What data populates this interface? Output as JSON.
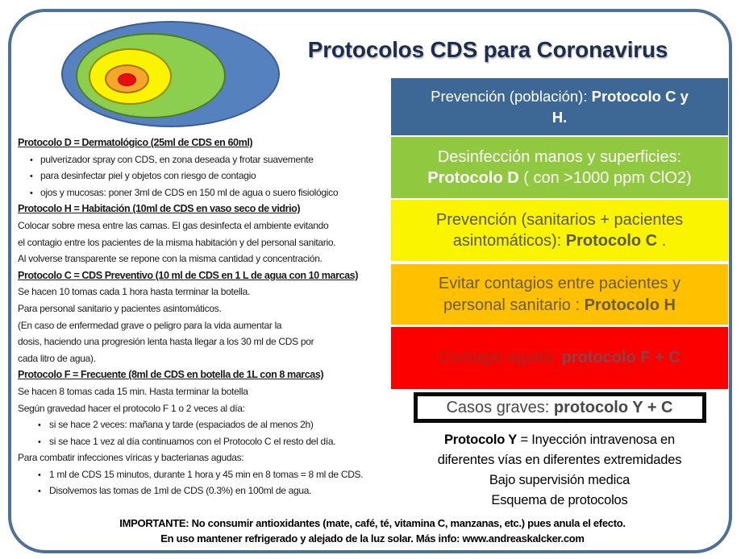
{
  "title": "Protocolos CDS para Coronavirus",
  "diagram": {
    "description": "concentric-severity-ellipses",
    "rings": [
      {
        "name": "blue-outer",
        "fill": "#5581BE",
        "stroke": "#3A5E93"
      },
      {
        "name": "green",
        "fill": "#8CCE4D",
        "stroke": "#4F7D22"
      },
      {
        "name": "yellow",
        "fill": "#FAF400",
        "stroke": "#9A8A00"
      },
      {
        "name": "orange",
        "fill": "#F6A72B",
        "stroke": "#A86E00"
      },
      {
        "name": "red-center",
        "fill": "#E90E0E",
        "stroke": "#B00000"
      }
    ]
  },
  "left_column": {
    "lines": [
      {
        "style": "header",
        "text": "Protocolo D = Dermatológico (25ml de CDS en 60ml)"
      },
      {
        "style": "bullet",
        "text": "pulverizador spray con CDS, en zona deseada y frotar suavemente"
      },
      {
        "style": "bullet",
        "text": "para desinfectar piel y objetos con riesgo de contagio"
      },
      {
        "style": "bullet",
        "text": "ojos y mucosas: poner 3ml de CDS en 150 ml de agua o suero fisiológico"
      },
      {
        "style": "header",
        "text": "Protocolo H = Habitación (10ml de CDS en vaso seco de vidrio)"
      },
      {
        "style": "plain",
        "text": "Colocar sobre mesa entre las camas. El gas desinfecta el ambiente evitando"
      },
      {
        "style": "plain",
        "text": "el contagio entre los pacientes de la misma habitación y del personal sanitario."
      },
      {
        "style": "plain",
        "text": "Al volverse transparente se repone con la misma cantidad y concentración."
      },
      {
        "style": "header",
        "text": "Protocolo C = CDS Preventivo (10 ml de CDS en 1 L de agua con 10 marcas)"
      },
      {
        "style": "plain",
        "text": "Se hacen 10 tomas cada 1 hora hasta terminar la botella."
      },
      {
        "style": "plain",
        "text": "Para personal sanitario y pacientes asintomáticos."
      },
      {
        "style": "plain",
        "text": "(En caso de enfermedad grave o peligro para la vida aumentar la"
      },
      {
        "style": "plain",
        "text": "dosis, haciendo una progresión lenta hasta llegar a los 30 ml de CDS por"
      },
      {
        "style": "plain",
        "text": "cada litro de agua)."
      },
      {
        "style": "header",
        "text": "Protocolo F = Frecuente (8ml de CDS en botella de 1L con 8 marcas)"
      },
      {
        "style": "plain",
        "text": "Se hacen 8 tomas cada 15 min. Hasta terminar la botella"
      },
      {
        "style": "plain",
        "text": "Según gravedad hacer el protocolo F 1 o 2 veces al día:"
      },
      {
        "style": "bullet2",
        "text": "si se hace 2 veces: mañana y tarde (espaciados de al menos 2h)"
      },
      {
        "style": "bullet2",
        "text": "si se hace 1 vez al día continuamos con el Protocolo C el resto del día."
      },
      {
        "style": "plain",
        "text": "Para combatir infecciones víricas y bacterianas agudas:"
      },
      {
        "style": "bullet2",
        "text": "1 ml de CDS 15 minutos, durante 1 hora y 45 min en 8 tomas = 8 ml de CDS."
      },
      {
        "style": "bullet2",
        "text": "Disolvemos las tomas de 1ml de CDS (0.3%) en 100ml de agua."
      }
    ]
  },
  "boxes": [
    {
      "id": "prevencion-poblacion",
      "bg": "#3D6795",
      "fg": "#FFFFFF",
      "lines": [
        [
          {
            "t": "Prevención (población): "
          },
          {
            "t": "Protocolo C y",
            "b": true
          }
        ],
        [
          {
            "t": "H.",
            "b": true
          }
        ]
      ]
    },
    {
      "id": "desinfeccion",
      "bg": "#90C83F",
      "fg": "#FFFFFF",
      "lines": [
        [
          {
            "t": "Desinfección manos y superficies:"
          }
        ],
        [
          {
            "t": "Protocolo D",
            "b": true
          },
          {
            "t": " ( con >1000 ppm ClO2)"
          }
        ]
      ]
    },
    {
      "id": "prevencion-sanitarios",
      "bg": "#FAF400",
      "fg": "#5A5A42",
      "lines": [
        [
          {
            "t": "Prevención (sanitarios + pacientes"
          }
        ],
        [
          {
            "t": "asintomáticos): "
          },
          {
            "t": "Protocolo C",
            "b": true
          },
          {
            "t": " ."
          }
        ]
      ]
    },
    {
      "id": "evitar-contagios",
      "bg": "#FFC000",
      "fg": "#6A5C41",
      "lines": [
        [
          {
            "t": "Evitar contagios entre pacientes y"
          }
        ],
        [
          {
            "t": "personal sanitario : "
          },
          {
            "t": "Protocolo H",
            "b": true
          }
        ]
      ]
    },
    {
      "id": "contagio-agudo",
      "bg": "#FC0000",
      "fg": "#9E2C26",
      "bold_fg": "#84464A",
      "lines": [
        [
          {
            "t": "Contagio agudo: "
          },
          {
            "t": "protocolo F + C",
            "b": true
          }
        ]
      ]
    },
    {
      "id": "casos-graves",
      "bg": "#FFFFFF",
      "fg": "#474747",
      "border": "5px solid #0A0A0A",
      "lines": [
        [
          {
            "t": "Casos graves: "
          },
          {
            "t": "protocolo Y + C",
            "b": true
          }
        ]
      ]
    }
  ],
  "protocol_y_note": {
    "lines": [
      [
        {
          "t": "Protocolo Y",
          "b": true
        },
        {
          "t": " = Inyección intravenosa en"
        }
      ],
      [
        {
          "t": "diferentes vías en diferentes extremidades"
        }
      ],
      [
        {
          "t": "Bajo supervisión medica"
        }
      ],
      [
        {
          "t": "Esquema de protocolos"
        }
      ]
    ]
  },
  "footer": {
    "lines": [
      "IMPORTANTE: No consumir antioxidantes  (mate, café, té, vitamina C, manzanas, etc.) pues anula el efecto.",
      "En uso mantener refrigerado y alejado de la luz solar.  Más info: www.andreaskalcker.com"
    ]
  },
  "colors": {
    "card_border": "#4E7195",
    "title": "#1C2D4E"
  }
}
